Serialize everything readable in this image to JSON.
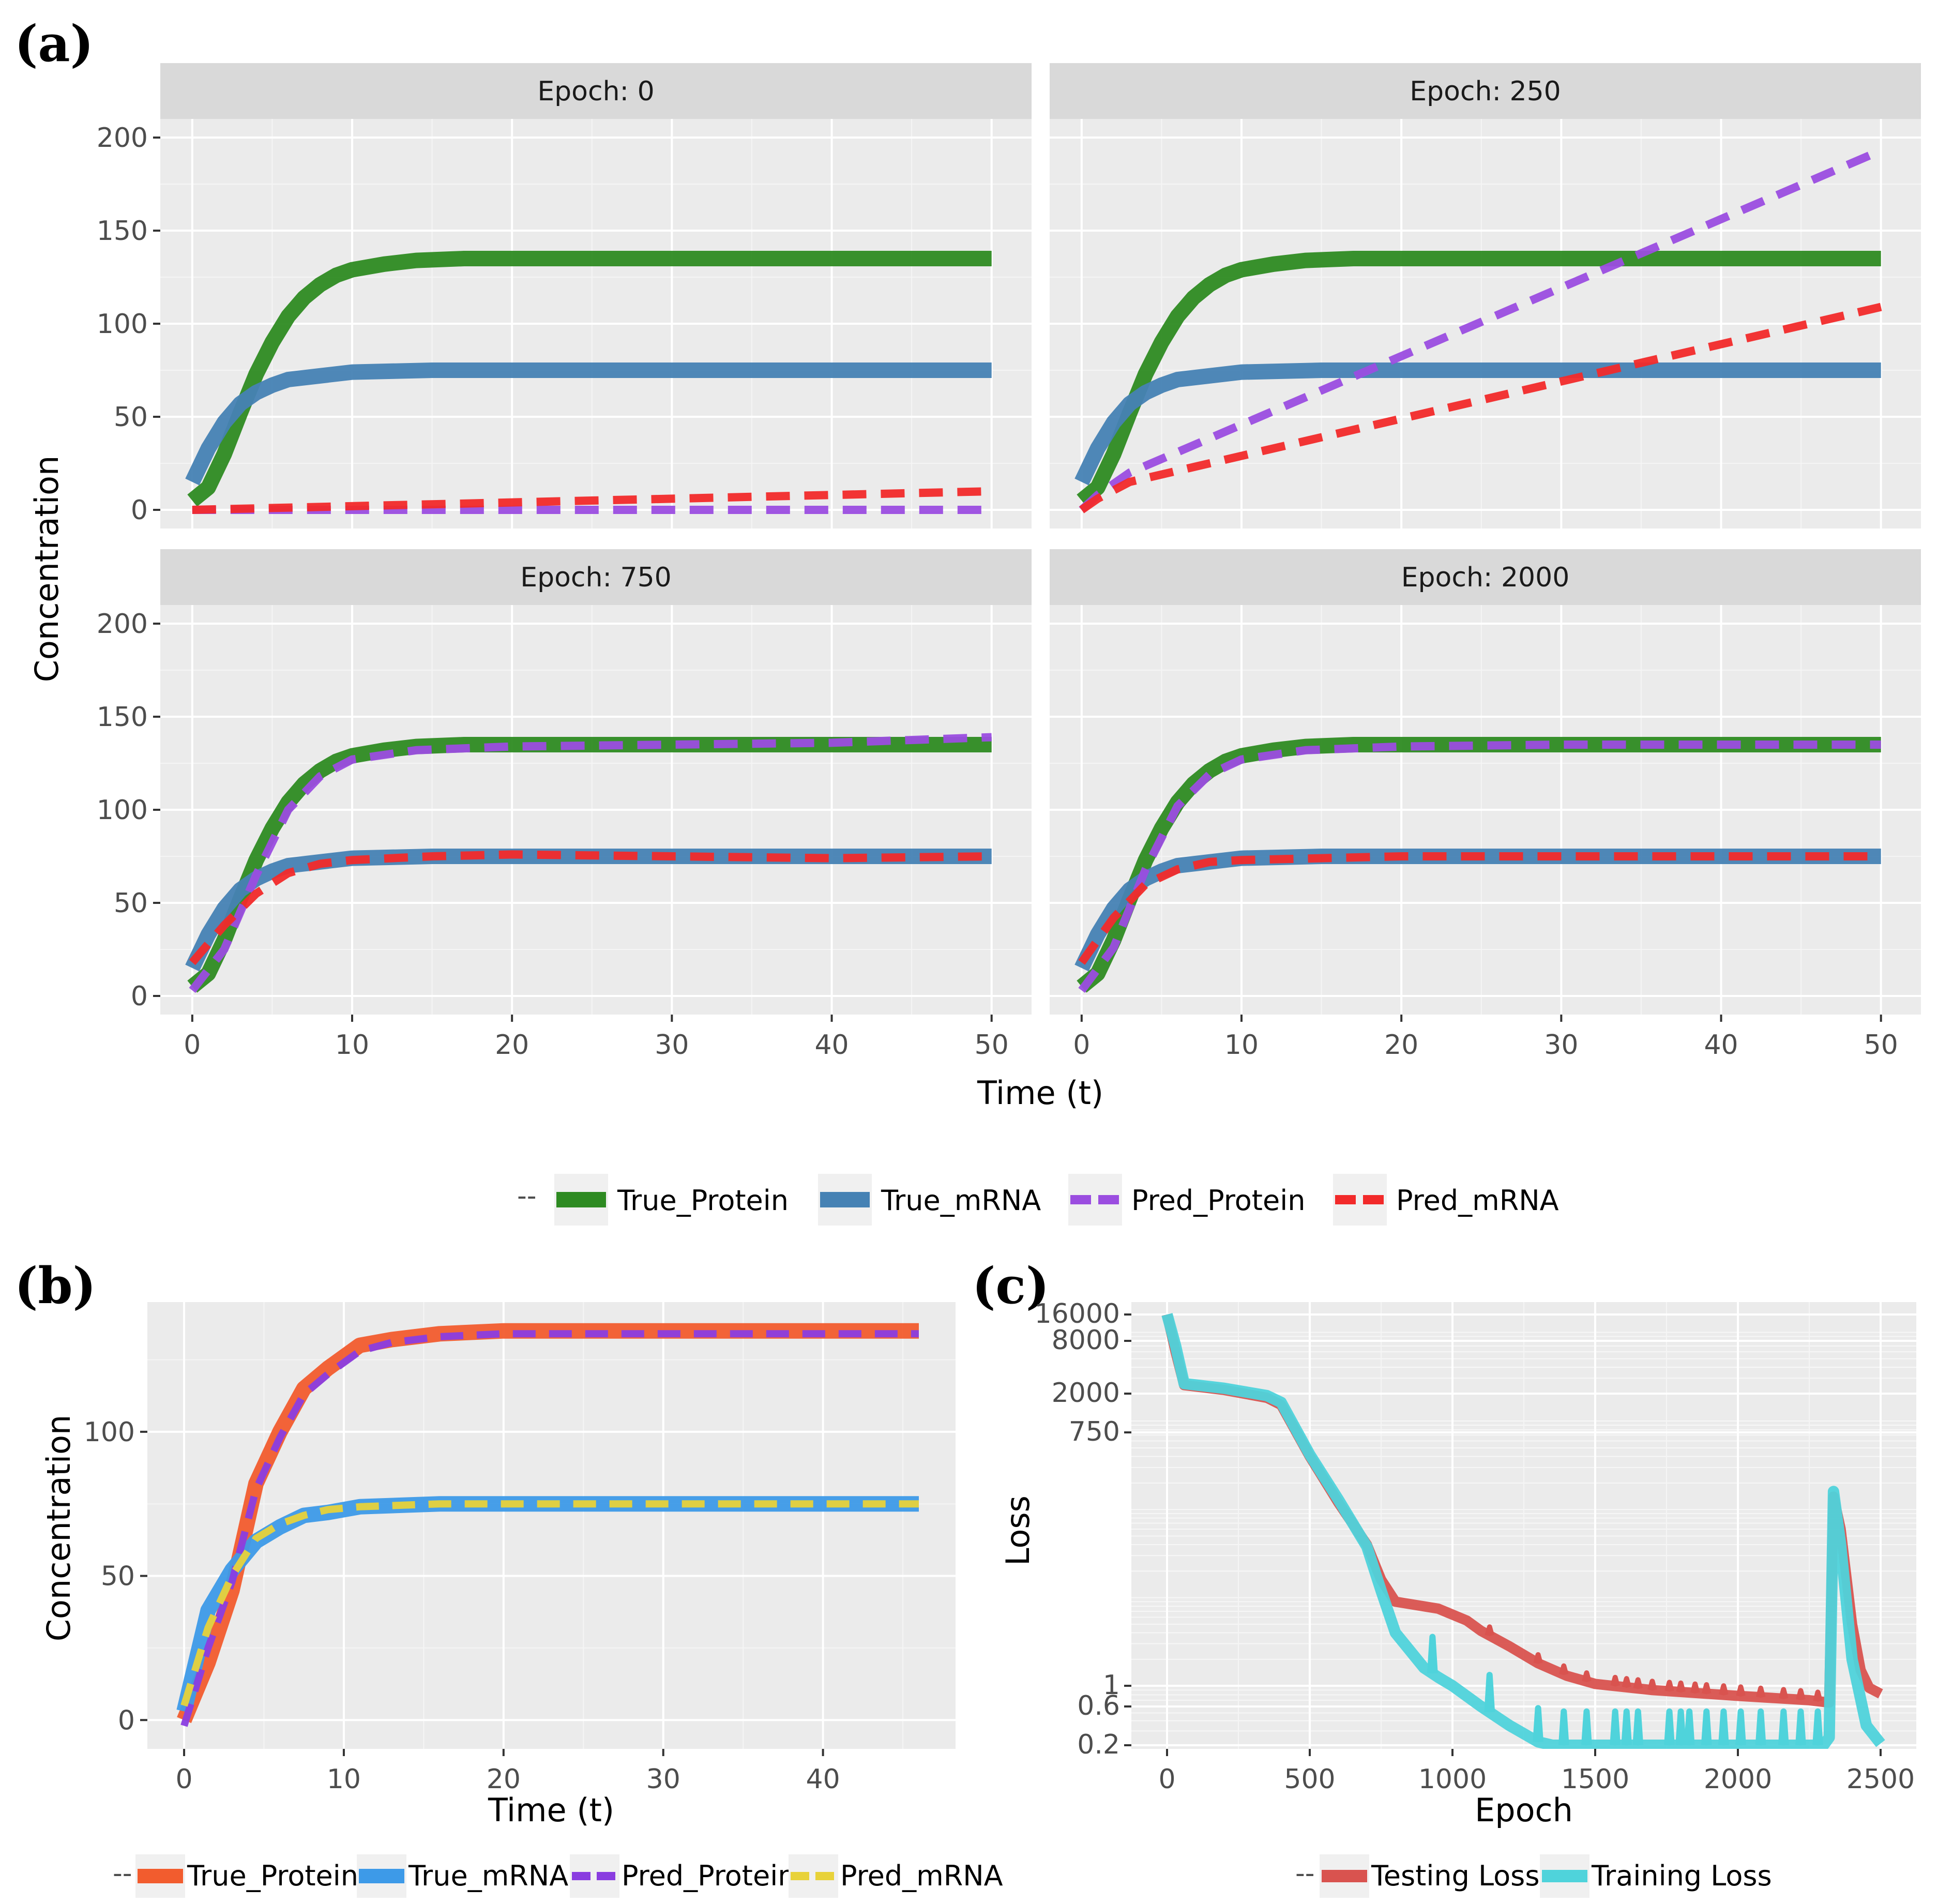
{
  "figure_labels": [
    "(a)",
    "(b)",
    "(c)"
  ],
  "colors": {
    "true_protein_a": "#2e8b22",
    "true_mrna_a": "#4682b4",
    "pred_protein_a": "#9b4de0",
    "pred_mrna_a": "#f22a2a",
    "true_protein_b": "#f25c2e",
    "true_mrna_b": "#3d9ae8",
    "pred_protein_b": "#8a3de0",
    "pred_mrna_b": "#e8d23a",
    "testing_loss": "#d9534f",
    "training_loss": "#4fd3db"
  },
  "chart_data": [
    {
      "id": "a",
      "type": "line",
      "facets": [
        {
          "strip": "Epoch: 0",
          "pred_protein": [
            [
              0,
              0
            ],
            [
              50,
              0
            ]
          ],
          "pred_mrna": [
            [
              0,
              0
            ],
            [
              50,
              10
            ]
          ]
        },
        {
          "strip": "Epoch: 250",
          "pred_protein": [
            [
              0,
              0
            ],
            [
              1,
              8
            ],
            [
              3,
              20
            ],
            [
              50,
              193
            ]
          ],
          "pred_mrna": [
            [
              0,
              0
            ],
            [
              1,
              6
            ],
            [
              3,
              15
            ],
            [
              50,
              109
            ]
          ]
        },
        {
          "strip": "Epoch: 750",
          "pred_protein": [
            [
              0,
              3
            ],
            [
              2,
              25
            ],
            [
              4,
              65
            ],
            [
              6,
              100
            ],
            [
              8,
              118
            ],
            [
              10,
              127
            ],
            [
              14,
              132
            ],
            [
              20,
              134
            ],
            [
              30,
              135
            ],
            [
              40,
              136
            ],
            [
              50,
              139
            ]
          ],
          "pred_mrna": [
            [
              0,
              18
            ],
            [
              2,
              38
            ],
            [
              4,
              55
            ],
            [
              6,
              66
            ],
            [
              8,
              71
            ],
            [
              10,
              73
            ],
            [
              15,
              75
            ],
            [
              20,
              76
            ],
            [
              30,
              75
            ],
            [
              40,
              74
            ],
            [
              50,
              75
            ]
          ]
        },
        {
          "strip": "Epoch: 2000",
          "pred_protein": [
            [
              0,
              3
            ],
            [
              2,
              26
            ],
            [
              4,
              68
            ],
            [
              6,
              102
            ],
            [
              8,
              119
            ],
            [
              10,
              127
            ],
            [
              14,
              132
            ],
            [
              20,
              134
            ],
            [
              30,
              135
            ],
            [
              50,
              135
            ]
          ],
          "pred_mrna": [
            [
              0,
              18
            ],
            [
              2,
              42
            ],
            [
              4,
              60
            ],
            [
              6,
              68
            ],
            [
              8,
              72
            ],
            [
              10,
              73
            ],
            [
              15,
              74
            ],
            [
              20,
              75
            ],
            [
              50,
              75
            ]
          ]
        }
      ],
      "true_protein": [
        [
          0,
          5
        ],
        [
          1,
          12
        ],
        [
          2,
          30
        ],
        [
          3,
          52
        ],
        [
          4,
          73
        ],
        [
          5,
          90
        ],
        [
          6,
          104
        ],
        [
          7,
          114
        ],
        [
          8,
          121
        ],
        [
          9,
          126
        ],
        [
          10,
          129
        ],
        [
          12,
          132
        ],
        [
          14,
          134
        ],
        [
          17,
          135
        ],
        [
          20,
          135
        ],
        [
          30,
          135
        ],
        [
          50,
          135
        ]
      ],
      "true_mrna": [
        [
          0,
          15
        ],
        [
          1,
          33
        ],
        [
          2,
          47
        ],
        [
          3,
          57
        ],
        [
          4,
          63
        ],
        [
          5,
          67
        ],
        [
          6,
          70
        ],
        [
          8,
          72
        ],
        [
          10,
          74
        ],
        [
          15,
          75
        ],
        [
          20,
          75
        ],
        [
          50,
          75
        ]
      ],
      "x_label": "Time (t)",
      "y_label": "Concentration",
      "xlim": [
        -2,
        52.5
      ],
      "ylim": [
        -10,
        210
      ],
      "x_ticks": [
        0,
        10,
        20,
        30,
        40,
        50
      ],
      "y_ticks": [
        0,
        50,
        100,
        150,
        200
      ],
      "legend": [
        "True_Protein",
        "True_mRNA",
        "Pred_Protein",
        "Pred_mRNA"
      ],
      "legend_position": "bottom"
    },
    {
      "id": "b",
      "type": "line",
      "series": [
        {
          "name": "True_Protein",
          "points": [
            [
              0,
              0
            ],
            [
              1.5,
              20
            ],
            [
              3,
              45
            ],
            [
              4.5,
              82
            ],
            [
              6,
              100
            ],
            [
              7.5,
              115
            ],
            [
              9,
              122
            ],
            [
              11,
              130
            ],
            [
              13,
              132
            ],
            [
              16,
              134
            ],
            [
              20,
              135
            ],
            [
              30,
              135
            ],
            [
              46,
              135
            ]
          ]
        },
        {
          "name": "True_mRNA",
          "points": [
            [
              0,
              3
            ],
            [
              1.5,
              38
            ],
            [
              3,
              52
            ],
            [
              4.5,
              62
            ],
            [
              6,
              67
            ],
            [
              7.5,
              71
            ],
            [
              9,
              72
            ],
            [
              11,
              74
            ],
            [
              16,
              75
            ],
            [
              20,
              75
            ],
            [
              46,
              75
            ]
          ]
        },
        {
          "name": "Pred_Protein",
          "points": [
            [
              0,
              -2
            ],
            [
              1.5,
              25
            ],
            [
              3,
              48
            ],
            [
              4.5,
              80
            ],
            [
              6,
              98
            ],
            [
              7.5,
              113
            ],
            [
              9,
              120
            ],
            [
              11,
              128
            ],
            [
              13,
              131
            ],
            [
              16,
              133
            ],
            [
              20,
              134
            ],
            [
              30,
              134
            ],
            [
              46,
              134
            ]
          ]
        },
        {
          "name": "Pred_mRNA",
          "points": [
            [
              0,
              5
            ],
            [
              1.5,
              32
            ],
            [
              3,
              50
            ],
            [
              4.5,
              63
            ],
            [
              6,
              68
            ],
            [
              7.5,
              71
            ],
            [
              9,
              73
            ],
            [
              11,
              74
            ],
            [
              16,
              75
            ],
            [
              20,
              75
            ],
            [
              46,
              75
            ]
          ]
        }
      ],
      "x_label": "Time (t)",
      "y_label": "Concentration",
      "xlim": [
        -2.3,
        48.3
      ],
      "ylim": [
        -10,
        145
      ],
      "x_ticks": [
        0,
        10,
        20,
        30,
        40
      ],
      "y_ticks": [
        0,
        50,
        100
      ],
      "legend": [
        "True_Protein",
        "True_mRNA",
        "Pred_Protein",
        "Pred_mRNA"
      ],
      "legend_position": "bottom"
    },
    {
      "id": "c",
      "type": "line",
      "y_scale": "log",
      "series": [
        {
          "name": "Testing Loss",
          "points": [
            [
              0,
              16000
            ],
            [
              30,
              6000
            ],
            [
              60,
              2500
            ],
            [
              200,
              2200
            ],
            [
              350,
              1800
            ],
            [
              400,
              1500
            ],
            [
              500,
              400
            ],
            [
              600,
              120
            ],
            [
              700,
              40
            ],
            [
              750,
              16
            ],
            [
              800,
              9
            ],
            [
              950,
              7.5
            ],
            [
              1050,
              5.5
            ],
            [
              1100,
              4.2
            ],
            [
              1200,
              2.8
            ],
            [
              1300,
              1.8
            ],
            [
              1400,
              1.3
            ],
            [
              1500,
              1.05
            ],
            [
              1700,
              0.9
            ],
            [
              2000,
              0.78
            ],
            [
              2250,
              0.7
            ],
            [
              2320,
              0.66
            ],
            [
              2335,
              140
            ],
            [
              2360,
              60
            ],
            [
              2400,
              5
            ],
            [
              2430,
              1.5
            ],
            [
              2460,
              0.95
            ],
            [
              2500,
              0.82
            ]
          ]
        },
        {
          "name": "Training Loss",
          "points": [
            [
              0,
              16000
            ],
            [
              30,
              7000
            ],
            [
              60,
              2600
            ],
            [
              200,
              2300
            ],
            [
              350,
              1900
            ],
            [
              400,
              1600
            ],
            [
              500,
              420
            ],
            [
              600,
              130
            ],
            [
              700,
              38
            ],
            [
              750,
              12
            ],
            [
              800,
              4
            ],
            [
              900,
              1.6
            ],
            [
              950,
              1.25
            ],
            [
              1000,
              1.0
            ],
            [
              1100,
              0.6
            ],
            [
              1200,
              0.35
            ],
            [
              1300,
              0.22
            ],
            [
              1350,
              0.2
            ],
            [
              2300,
              0.2
            ],
            [
              2320,
              0.25
            ],
            [
              2335,
              160
            ],
            [
              2360,
              40
            ],
            [
              2400,
              2
            ],
            [
              2450,
              0.35
            ],
            [
              2500,
              0.21
            ]
          ]
        }
      ],
      "spikes": [
        {
          "series": "Training Loss",
          "x": [
            930,
            1130,
            1300,
            1390,
            1470,
            1570,
            1610,
            1650,
            1760,
            1800,
            1830,
            1890,
            1950,
            2010,
            2080,
            2160,
            2220,
            2280
          ]
        },
        {
          "series": "Testing Loss",
          "x": [
            1130,
            1300,
            1390,
            1470,
            1570,
            1610,
            1650,
            1700,
            1760,
            1800,
            1850,
            1890,
            1950,
            2010,
            2080,
            2160,
            2220,
            2280
          ]
        }
      ],
      "x_label": "Epoch",
      "y_label": "Loss",
      "xlim": [
        -125,
        2625
      ],
      "ylim": [
        0.2,
        16000
      ],
      "x_ticks": [
        0,
        500,
        1000,
        1500,
        2000,
        2500
      ],
      "y_ticks": [
        0.2,
        0.6,
        1,
        750,
        2000,
        8000,
        16000
      ],
      "y_tick_labels": [
        "0.2",
        "0.6",
        "1",
        "750",
        "2000",
        "8000",
        "16000"
      ],
      "legend": [
        "Testing Loss",
        "Training Loss"
      ],
      "legend_position": "bottom"
    }
  ]
}
